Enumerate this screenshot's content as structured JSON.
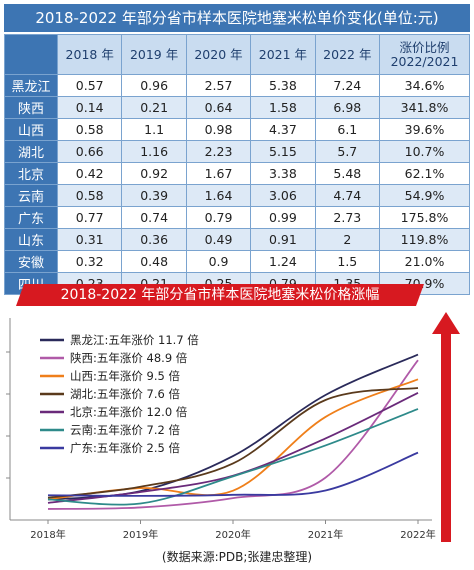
{
  "title": "2018-2022 年部分省市样本医院地塞米松单价变化(单位:元)",
  "chart_title": "2018-2022 年部分省市样本医院地塞米松价格涨幅",
  "source": "(数据来源:PDB;张建忠整理)",
  "table_headers": [
    "2018 年",
    "2019 年",
    "2020 年",
    "2021 年",
    "2022 年"
  ],
  "ratio_header_line1": "涨价比例",
  "ratio_header_line2": "2022/2021",
  "colors": {
    "blue": "#3d75b3",
    "red": "#d71920",
    "series": [
      "#2a2a5a",
      "#b05aa8",
      "#ef7f1a",
      "#5a3a1c",
      "#6a2a7a",
      "#2e8a8a",
      "#3a3aa0"
    ]
  },
  "chart_data": [
    {
      "type": "table",
      "columns": [
        "",
        "2018 年",
        "2019 年",
        "2020 年",
        "2021 年",
        "2022 年",
        "涨价比例 2022/2021"
      ],
      "rows": [
        {
          "province": "黑龙江",
          "values": [
            "0.57",
            "0.96",
            "2.57",
            "5.38",
            "7.24"
          ],
          "ratio": "34.6%"
        },
        {
          "province": "陕西",
          "values": [
            "0.14",
            "0.21",
            "0.64",
            "1.58",
            "6.98"
          ],
          "ratio": "341.8%"
        },
        {
          "province": "山西",
          "values": [
            "0.58",
            "1.1",
            "0.98",
            "4.37",
            "6.1"
          ],
          "ratio": "39.6%"
        },
        {
          "province": "湖北",
          "values": [
            "0.66",
            "1.16",
            "2.23",
            "5.15",
            "5.7"
          ],
          "ratio": "10.7%"
        },
        {
          "province": "北京",
          "values": [
            "0.42",
            "0.92",
            "1.67",
            "3.38",
            "5.48"
          ],
          "ratio": "62.1%"
        },
        {
          "province": "云南",
          "values": [
            "0.58",
            "0.39",
            "1.64",
            "3.06",
            "4.74"
          ],
          "ratio": "54.9%"
        },
        {
          "province": "广东",
          "values": [
            "0.77",
            "0.74",
            "0.79",
            "0.99",
            "2.73"
          ],
          "ratio": "175.8%"
        },
        {
          "province": "山东",
          "values": [
            "0.31",
            "0.36",
            "0.49",
            "0.91",
            "2"
          ],
          "ratio": "119.8%"
        },
        {
          "province": "安徽",
          "values": [
            "0.32",
            "0.48",
            "0.9",
            "1.24",
            "1.5"
          ],
          "ratio": "21.0%"
        },
        {
          "province": "四川",
          "values": [
            "0.23",
            "0.21",
            "0.25",
            "0.79",
            "1.35"
          ],
          "ratio": "70.9%"
        }
      ]
    },
    {
      "type": "line",
      "title": "2018-2022 年部分省市样本医院地塞米松价格涨幅",
      "categories": [
        "2018年",
        "2019年",
        "2020年",
        "2021年",
        "2022年"
      ],
      "legend_position": "top-left",
      "series": [
        {
          "name": "黑龙江:五年涨价 11.7 倍",
          "color": "#2a2a5a",
          "values": [
            0.57,
            0.96,
            2.57,
            5.38,
            7.24
          ]
        },
        {
          "name": "陕西:五年涨价 48.9 倍",
          "color": "#b05aa8",
          "values": [
            0.14,
            0.21,
            0.64,
            1.58,
            6.98
          ]
        },
        {
          "name": "山西:五年涨价 9.5 倍",
          "color": "#ef7f1a",
          "values": [
            0.58,
            1.1,
            0.98,
            4.37,
            6.1
          ]
        },
        {
          "name": "湖北:五年涨价 7.6 倍",
          "color": "#5a3a1c",
          "values": [
            0.66,
            1.16,
            2.23,
            5.15,
            5.7
          ]
        },
        {
          "name": "北京:五年涨价 12.0 倍",
          "color": "#6a2a7a",
          "values": [
            0.42,
            0.92,
            1.67,
            3.38,
            5.48
          ]
        },
        {
          "name": "云南:五年涨价 7.2 倍",
          "color": "#2e8a8a",
          "values": [
            0.58,
            0.39,
            1.64,
            3.06,
            4.74
          ]
        },
        {
          "name": "广东:五年涨价 2.5 倍",
          "color": "#3a3aa0",
          "values": [
            0.77,
            0.74,
            0.79,
            0.99,
            2.73
          ]
        }
      ]
    }
  ]
}
